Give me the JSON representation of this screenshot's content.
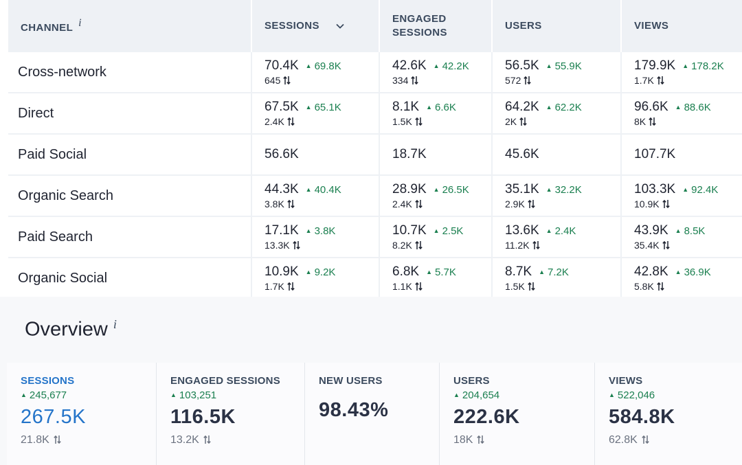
{
  "table": {
    "headers": {
      "channel": "CHANNEL",
      "info": "i",
      "sessions": "SESSIONS",
      "engaged_line1": "ENGAGED",
      "engaged_line2": "SESSIONS",
      "users": "USERS",
      "views": "VIEWS"
    },
    "rows": [
      {
        "channel": "Cross-network",
        "sessions": {
          "value": "70.4K",
          "delta": "69.8K",
          "prev": "645"
        },
        "engaged": {
          "value": "42.6K",
          "delta": "42.2K",
          "prev": "334"
        },
        "users": {
          "value": "56.5K",
          "delta": "55.9K",
          "prev": "572"
        },
        "views": {
          "value": "179.9K",
          "delta": "178.2K",
          "prev": "1.7K"
        }
      },
      {
        "channel": "Direct",
        "sessions": {
          "value": "67.5K",
          "delta": "65.1K",
          "prev": "2.4K"
        },
        "engaged": {
          "value": "8.1K",
          "delta": "6.6K",
          "prev": "1.5K"
        },
        "users": {
          "value": "64.2K",
          "delta": "62.2K",
          "prev": "2K"
        },
        "views": {
          "value": "96.6K",
          "delta": "88.6K",
          "prev": "8K"
        }
      },
      {
        "channel": "Paid Social",
        "sessions": {
          "value": "56.6K"
        },
        "engaged": {
          "value": "18.7K"
        },
        "users": {
          "value": "45.6K"
        },
        "views": {
          "value": "107.7K"
        }
      },
      {
        "channel": "Organic Search",
        "sessions": {
          "value": "44.3K",
          "delta": "40.4K",
          "prev": "3.8K"
        },
        "engaged": {
          "value": "28.9K",
          "delta": "26.5K",
          "prev": "2.4K"
        },
        "users": {
          "value": "35.1K",
          "delta": "32.2K",
          "prev": "2.9K"
        },
        "views": {
          "value": "103.3K",
          "delta": "92.4K",
          "prev": "10.9K"
        }
      },
      {
        "channel": "Paid Search",
        "sessions": {
          "value": "17.1K",
          "delta": "3.8K",
          "prev": "13.3K"
        },
        "engaged": {
          "value": "10.7K",
          "delta": "2.5K",
          "prev": "8.2K"
        },
        "users": {
          "value": "13.6K",
          "delta": "2.4K",
          "prev": "11.2K"
        },
        "views": {
          "value": "43.9K",
          "delta": "8.5K",
          "prev": "35.4K"
        }
      },
      {
        "channel": "Organic Social",
        "sessions": {
          "value": "10.9K",
          "delta": "9.2K",
          "prev": "1.7K"
        },
        "engaged": {
          "value": "6.8K",
          "delta": "5.7K",
          "prev": "1.1K"
        },
        "users": {
          "value": "8.7K",
          "delta": "7.2K",
          "prev": "1.5K"
        },
        "views": {
          "value": "42.8K",
          "delta": "36.9K",
          "prev": "5.8K"
        }
      }
    ]
  },
  "overview": {
    "title": "Overview",
    "info": "i",
    "cards": [
      {
        "label": "SESSIONS",
        "delta": "245,677",
        "value": "267.5K",
        "prev": "21.8K",
        "active": true
      },
      {
        "label": "ENGAGED SESSIONS",
        "delta": "103,251",
        "value": "116.5K",
        "prev": "13.2K"
      },
      {
        "label": "NEW USERS",
        "value": "98.43%"
      },
      {
        "label": "USERS",
        "delta": "204,654",
        "value": "222.6K",
        "prev": "18K"
      },
      {
        "label": "VIEWS",
        "delta": "522,046",
        "value": "584.8K",
        "prev": "62.8K"
      }
    ]
  },
  "icons": {
    "delta_up": "triangle-up-icon",
    "compare": "arrows-up-down-icon",
    "sort": "chevron-down-icon",
    "info": "info-icon"
  },
  "colors": {
    "positive": "#1a7f4f",
    "accent": "#2474c9",
    "header_bg": "#eef1f5",
    "text": "#1f2330"
  }
}
